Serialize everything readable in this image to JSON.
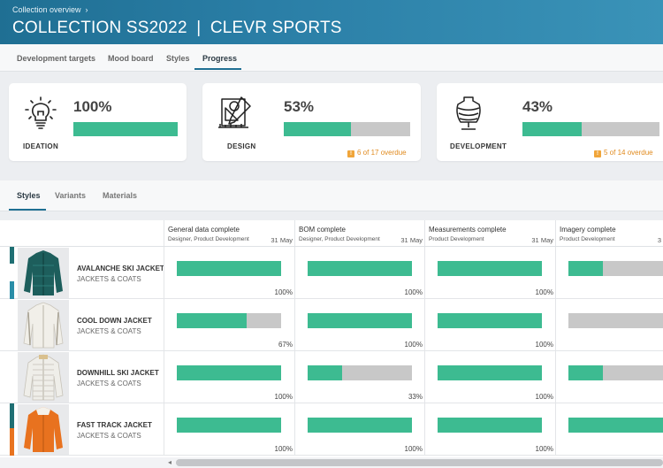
{
  "header": {
    "breadcrumb": "Collection overview",
    "title_prefix": "COLLECTION",
    "title_season": "SS2022",
    "title_sep": "|",
    "title_brand": "CLEVR SPORTS"
  },
  "tabs": [
    "Development targets",
    "Mood board",
    "Styles",
    "Progress"
  ],
  "active_tab": "Progress",
  "cards": [
    {
      "label": "IDEATION",
      "percent": "100%",
      "progress": 1.0,
      "overdue": ""
    },
    {
      "label": "DESIGN",
      "percent": "53%",
      "progress": 0.53,
      "overdue": "6 of 17 overdue"
    },
    {
      "label": "DEVELOPMENT",
      "percent": "43%",
      "progress": 0.43,
      "overdue": "5 of 14 overdue"
    }
  ],
  "subtabs": [
    "Styles",
    "Variants",
    "Materials"
  ],
  "active_subtab": "Styles",
  "columns": [
    {
      "name": "General data complete",
      "roles": "Designer, Product Development",
      "date": "31 May"
    },
    {
      "name": "BOM complete",
      "roles": "Designer, Product Development",
      "date": "31 May"
    },
    {
      "name": "Measurements complete",
      "roles": "Product Development",
      "date": "31 May"
    },
    {
      "name": "Imagery complete",
      "roles": "Product Development",
      "date": "3"
    }
  ],
  "rows": [
    {
      "name": "AVALANCHE SKI JACKET",
      "category": "JACKETS & COATS",
      "values": [
        "100%",
        "100%",
        "100%",
        ""
      ],
      "progress": [
        1.0,
        1.0,
        1.0,
        0.33
      ]
    },
    {
      "name": "COOL DOWN JACKET",
      "category": "JACKETS & COATS",
      "values": [
        "67%",
        "100%",
        "100%",
        ""
      ],
      "progress": [
        0.67,
        1.0,
        1.0,
        0.0
      ]
    },
    {
      "name": "DOWNHILL SKI JACKET",
      "category": "JACKETS & COATS",
      "values": [
        "100%",
        "33%",
        "100%",
        ""
      ],
      "progress": [
        1.0,
        0.33,
        1.0,
        0.33
      ]
    },
    {
      "name": "FAST TRACK JACKET",
      "category": "JACKETS & COATS",
      "values": [
        "100%",
        "100%",
        "100%",
        ""
      ],
      "progress": [
        1.0,
        1.0,
        1.0,
        1.0
      ]
    }
  ],
  "colors": {
    "accent": "#1f6f93",
    "progress_fill": "#3dbb91",
    "progress_track": "#c8c8c8",
    "overdue": "#e08a1e"
  }
}
